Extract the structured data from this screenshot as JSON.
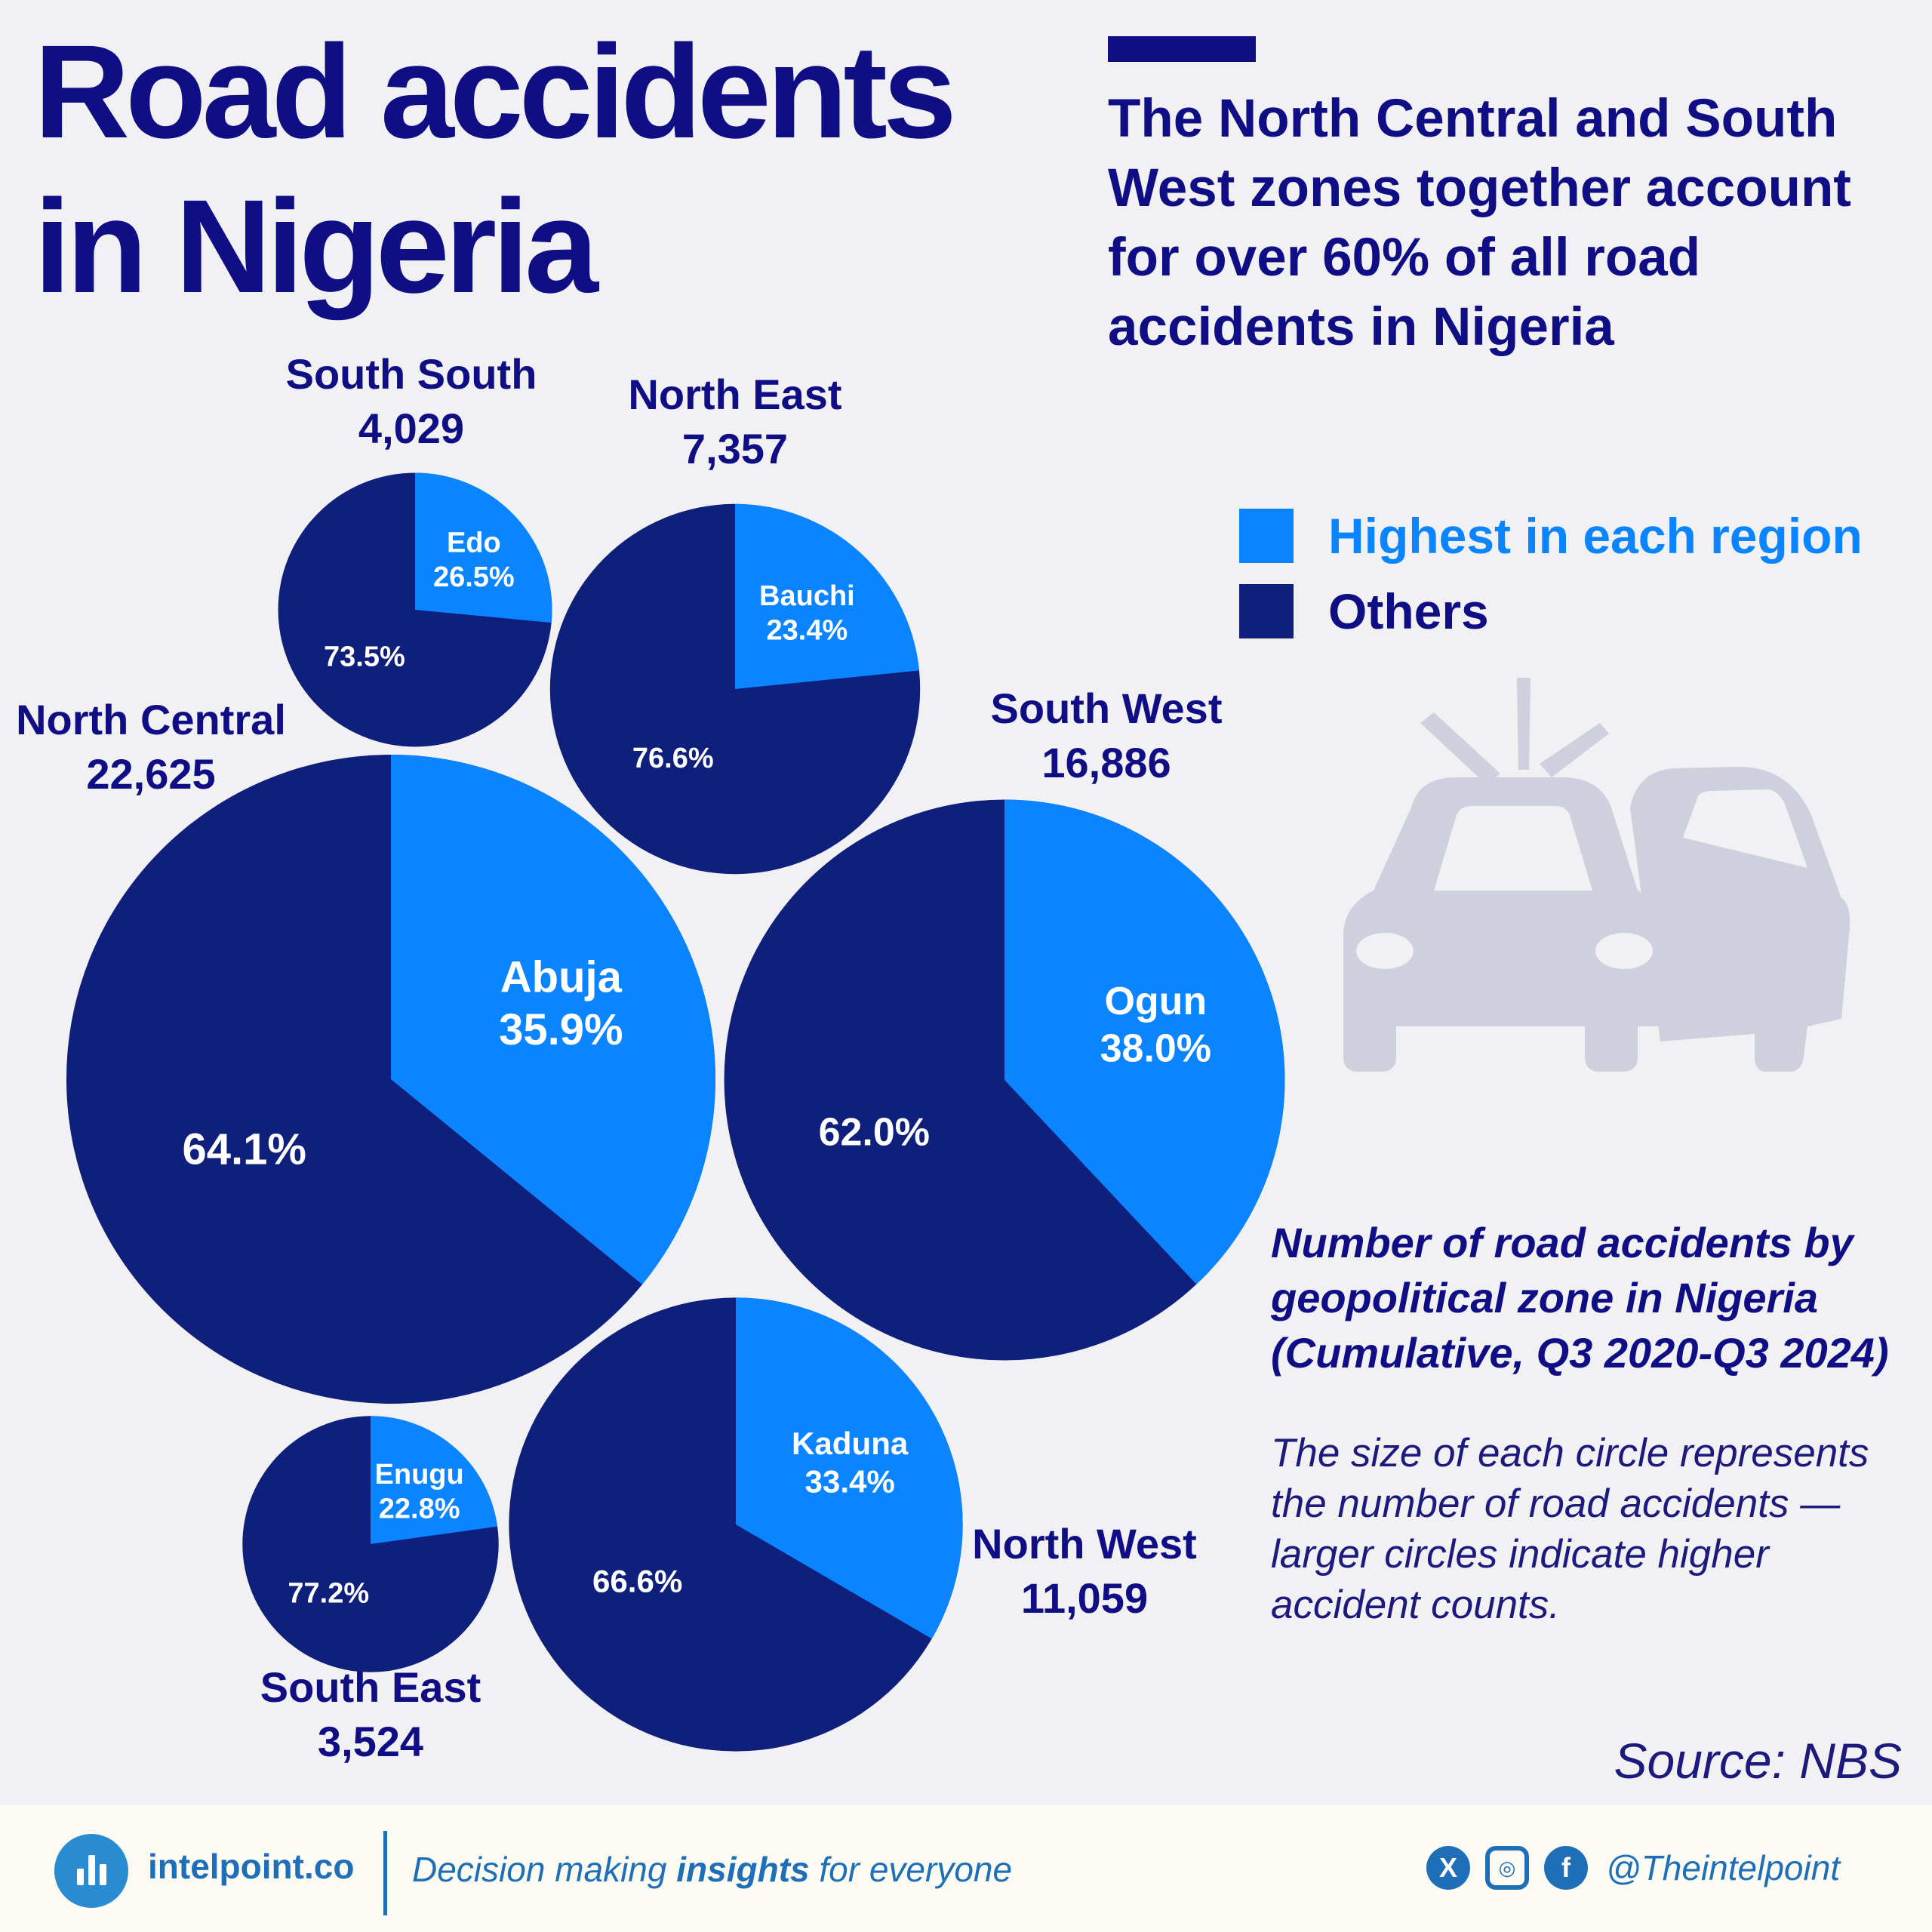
{
  "title": {
    "line1": "Road accidents",
    "line2": "in Nigeria"
  },
  "headline": "The North Central and South West zones together account for over 60% of all road accidents in Nigeria",
  "legend": {
    "highest": {
      "label": "Highest in each region",
      "color": "#0a84ff"
    },
    "others": {
      "label": "Others",
      "color": "#0e1f7c"
    }
  },
  "subtitle": "Number of road accidents by geopolitical zone in Nigeria (Cumulative, Q3 2020-Q3 2024)",
  "note": "The size of each circle represents the number of road accidents — larger circles indicate higher accident counts.",
  "source": "Source: NBS",
  "chart_data": {
    "type": "pie",
    "series_names": [
      "Highest in each region",
      "Others"
    ],
    "zones": [
      {
        "zone": "South South",
        "total": 4029,
        "total_label": "4,029",
        "top_state": "Edo",
        "top_pct": 26.5,
        "top_label": "26.5%",
        "others_pct": 73.5,
        "others_label": "73.5%"
      },
      {
        "zone": "North East",
        "total": 7357,
        "total_label": "7,357",
        "top_state": "Bauchi",
        "top_pct": 23.4,
        "top_label": "23.4%",
        "others_pct": 76.6,
        "others_label": "76.6%"
      },
      {
        "zone": "North Central",
        "total": 22625,
        "total_label": "22,625",
        "top_state": "Abuja",
        "top_pct": 35.9,
        "top_label": "35.9%",
        "others_pct": 64.1,
        "others_label": "64.1%"
      },
      {
        "zone": "South West",
        "total": 16886,
        "total_label": "16,886",
        "top_state": "Ogun",
        "top_pct": 38.0,
        "top_label": "38.0%",
        "others_pct": 62.0,
        "others_label": "62.0%"
      },
      {
        "zone": "South East",
        "total": 3524,
        "total_label": "3,524",
        "top_state": "Enugu",
        "top_pct": 22.8,
        "top_label": "22.8%",
        "others_pct": 77.2,
        "others_label": "77.2%"
      },
      {
        "zone": "North West",
        "total": 11059,
        "total_label": "11,059",
        "top_state": "Kaduna",
        "top_pct": 33.4,
        "top_label": "33.4%",
        "others_pct": 66.6,
        "others_label": "66.6%"
      }
    ]
  },
  "footer": {
    "brand": "intelpoint.co",
    "tagline_pre": "Decision making ",
    "tagline_bold": "insights",
    "tagline_post": " for everyone",
    "social_icons": [
      "x-icon",
      "instagram-icon",
      "facebook-icon"
    ],
    "handle": "@Theintelpoint"
  }
}
